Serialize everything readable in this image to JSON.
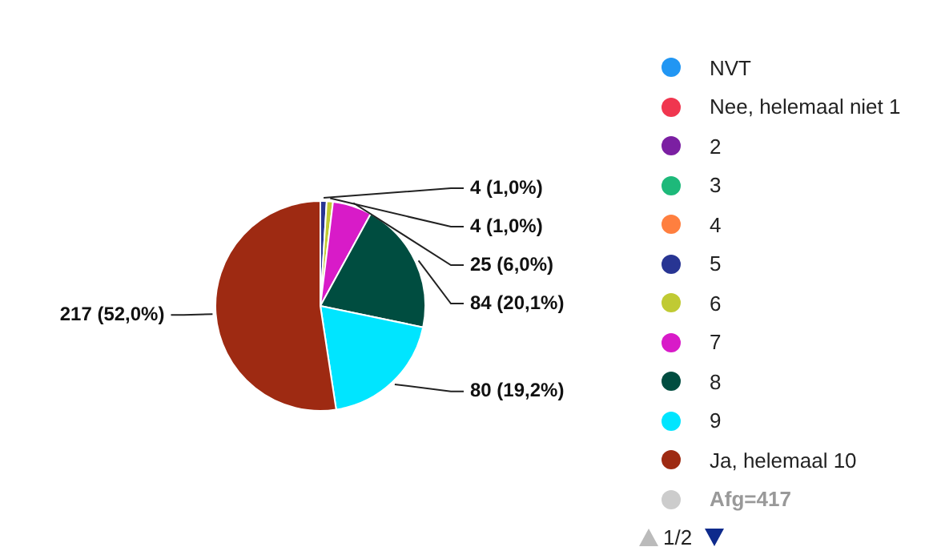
{
  "chart_data": {
    "type": "pie",
    "categories": [
      "NVT",
      "Nee, helemaal niet 1",
      "2",
      "3",
      "4",
      "5",
      "6",
      "7",
      "8",
      "9",
      "Ja, helemaal 10"
    ],
    "values": [
      0,
      0,
      0,
      0,
      0,
      4,
      4,
      25,
      84,
      80,
      217
    ],
    "colors": [
      "#2196f3",
      "#f0364f",
      "#7b1fa2",
      "#1db97a",
      "#ff7f3f",
      "#283593",
      "#c0ca33",
      "#d81bc8",
      "#004d40",
      "#00e5ff",
      "#9e2a12"
    ],
    "value_labels": [
      null,
      null,
      null,
      null,
      null,
      "4 (1,0%)",
      "4 (1,0%)",
      "25 (6,0%)",
      "84 (20,1%)",
      "80 (19,2%)",
      "217 (52,0%)"
    ],
    "legend": "right",
    "annotations": [
      "Afg=417",
      "1/2"
    ]
  }
}
